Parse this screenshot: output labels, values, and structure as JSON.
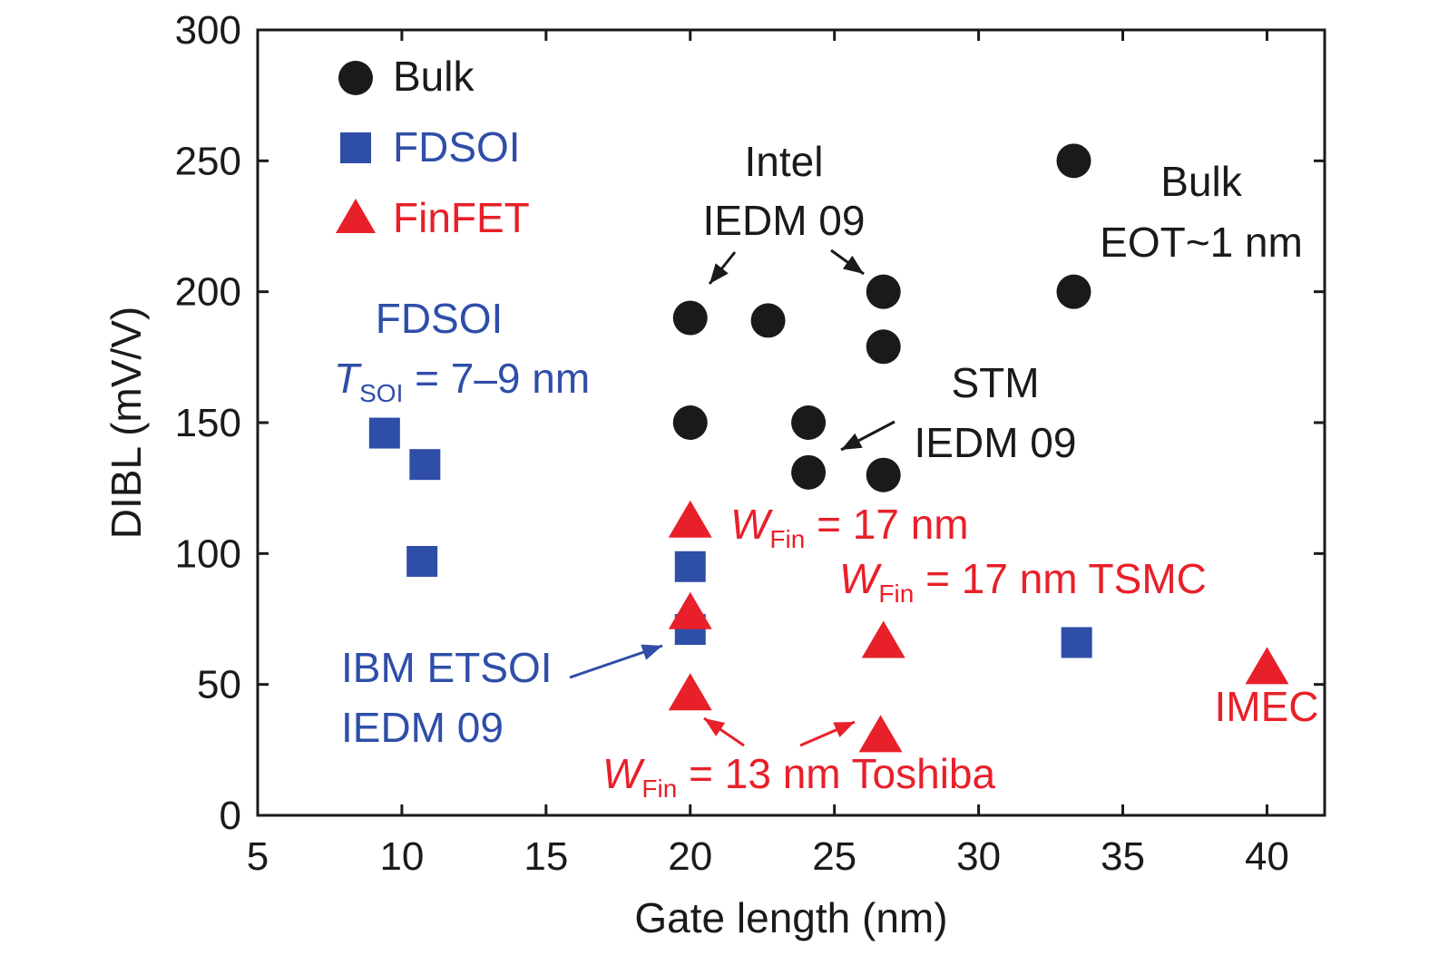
{
  "colors": {
    "bulk": "#1a1a1a",
    "fdsoi": "#2f4ea8",
    "finfet": "#e8202a",
    "axis": "#1a1a1a"
  },
  "chart_data": {
    "type": "scatter",
    "title": "",
    "xlabel": "Gate length (nm)",
    "ylabel": "DIBL (mV/V)",
    "xlim": [
      5,
      42
    ],
    "ylim": [
      0,
      300
    ],
    "xticks": [
      5,
      10,
      15,
      20,
      25,
      30,
      35,
      40
    ],
    "yticks": [
      0,
      50,
      100,
      150,
      200,
      250,
      300
    ],
    "series": [
      {
        "name": "Bulk",
        "marker": "circle",
        "color": "#1a1a1a",
        "points": [
          {
            "x": 20,
            "y": 190
          },
          {
            "x": 22.7,
            "y": 189
          },
          {
            "x": 26.7,
            "y": 200
          },
          {
            "x": 26.7,
            "y": 179
          },
          {
            "x": 20,
            "y": 150
          },
          {
            "x": 24.1,
            "y": 150
          },
          {
            "x": 24.1,
            "y": 131
          },
          {
            "x": 26.7,
            "y": 130
          },
          {
            "x": 33.3,
            "y": 250
          },
          {
            "x": 33.3,
            "y": 200
          }
        ]
      },
      {
        "name": "FDSOI",
        "marker": "square",
        "color": "#2f4ea8",
        "points": [
          {
            "x": 9.4,
            "y": 146
          },
          {
            "x": 10.8,
            "y": 134
          },
          {
            "x": 10.7,
            "y": 97
          },
          {
            "x": 20,
            "y": 95
          },
          {
            "x": 20,
            "y": 71
          },
          {
            "x": 33.4,
            "y": 66
          }
        ]
      },
      {
        "name": "FinFET",
        "marker": "triangle",
        "color": "#e8202a",
        "points": [
          {
            "x": 20,
            "y": 112
          },
          {
            "x": 20,
            "y": 77
          },
          {
            "x": 26.7,
            "y": 66
          },
          {
            "x": 20,
            "y": 46
          },
          {
            "x": 26.6,
            "y": 30
          },
          {
            "x": 40,
            "y": 56
          }
        ]
      }
    ],
    "annotations": [
      {
        "id": "intel",
        "lines": [
          "Intel",
          "IEDM 09"
        ],
        "color": "#1a1a1a"
      },
      {
        "id": "bulk-eot",
        "lines": [
          "Bulk",
          "EOT~1 nm"
        ],
        "color": "#1a1a1a"
      },
      {
        "id": "stm",
        "lines": [
          "STM",
          "IEDM 09"
        ],
        "color": "#1a1a1a"
      },
      {
        "id": "fdsoi-tsoi",
        "title": "FDSOI",
        "var": "T",
        "sub": "SOI",
        "rest": " = 7–9 nm",
        "color": "#2f4ea8"
      },
      {
        "id": "ibm",
        "lines": [
          "IBM ETSOI",
          "IEDM 09"
        ],
        "color": "#2f4ea8"
      },
      {
        "id": "wfin-17",
        "var": "W",
        "sub": "Fin",
        "rest": " = 17 nm",
        "color": "#e8202a"
      },
      {
        "id": "wfin-17-tsmc",
        "var": "W",
        "sub": "Fin",
        "rest": " = 17 nm TSMC",
        "color": "#e8202a"
      },
      {
        "id": "wfin-13-toshiba",
        "var": "W",
        "sub": "Fin",
        "rest": " = 13 nm Toshiba",
        "color": "#e8202a"
      },
      {
        "id": "imec",
        "lines": [
          "IMEC"
        ],
        "color": "#e8202a"
      }
    ]
  }
}
